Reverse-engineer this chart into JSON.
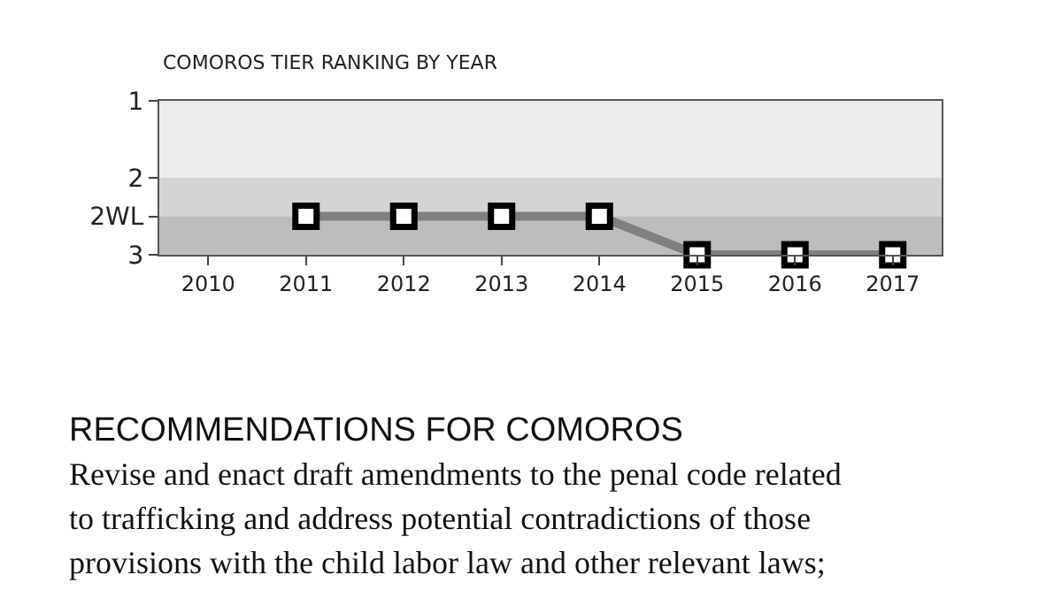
{
  "chart_data": {
    "type": "line",
    "title": "COMOROS TIER RANKING BY YEAR",
    "categories": [
      "2010",
      "2011",
      "2012",
      "2013",
      "2014",
      "2015",
      "2016",
      "2017"
    ],
    "series": [
      {
        "color": "#808080",
        "values": [
          null,
          2.5,
          2.5,
          2.5,
          2.5,
          3,
          3,
          3
        ]
      }
    ],
    "ylim": [
      3,
      1
    ],
    "yticks": [
      1,
      2,
      {
        "value": 2.5,
        "label": "2WL"
      },
      3
    ],
    "bands": [
      {
        "axis": "y",
        "from": 2,
        "to": 2.5,
        "color": "#d4d4d6"
      },
      {
        "axis": "y",
        "from": 2.5,
        "to": 3,
        "color": "#bdbdbf"
      }
    ],
    "marker": "square",
    "line_style": "solid",
    "grid": false,
    "annotations": [
      "RECOMMENDATIONS FOR COMOROS",
      "Revise and enact draft amendments to the penal code related",
      "to trafficking and address potential contradictions of those",
      "provisions with the child labor law and other relevant laws;"
    ]
  }
}
